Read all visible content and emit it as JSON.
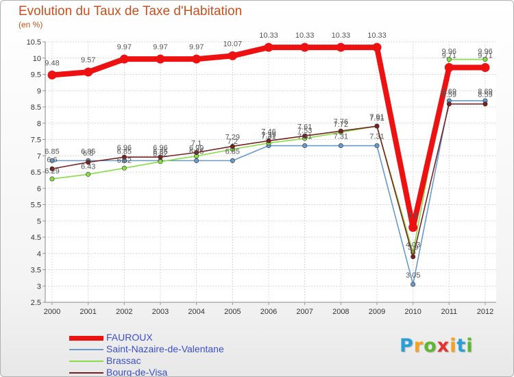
{
  "chart_data": {
    "type": "line",
    "title": "Evolution du Taux de Taxe d'Habitation",
    "unit": "(en %)",
    "categories": [
      "2000",
      "2001",
      "2002",
      "2003",
      "2004",
      "2005",
      "2006",
      "2007",
      "2008",
      "2009",
      "2010",
      "2011",
      "2012"
    ],
    "yticks": [
      "2.5",
      "3",
      "3.5",
      "4",
      "4.5",
      "5",
      "5.5",
      "6",
      "6.5",
      "7",
      "7.5",
      "8",
      "8.5",
      "9",
      "9.5",
      "10",
      "10.5"
    ],
    "ylim": [
      2.5,
      10.5
    ],
    "grid": true,
    "series": [
      {
        "name": "FAUROUX",
        "color": "#ee1111",
        "values": [
          9.48,
          9.57,
          9.97,
          9.97,
          9.97,
          10.07,
          10.33,
          10.33,
          10.33,
          10.33,
          4.8,
          9.71,
          9.71
        ],
        "labels": [
          "9.48",
          "9.57",
          "9.97",
          "9.97",
          "9.97",
          "10.07",
          "10.33",
          "10.33",
          "10.33",
          "10.33",
          "4.8",
          "9.71",
          "9.71"
        ]
      },
      {
        "name": "Saint-Nazaire-de-Valentane",
        "color": "#6699cc",
        "values": [
          6.85,
          6.85,
          6.85,
          6.85,
          6.85,
          6.85,
          7.31,
          7.31,
          7.31,
          7.31,
          3.05,
          8.69,
          8.69
        ],
        "labels": [
          "6.85",
          "6.85",
          "6.85",
          "6.85",
          "6.85",
          "6.85",
          "7.31",
          "7.31",
          "7.31",
          "7.31",
          "3.05",
          "8.69",
          "8.69"
        ]
      },
      {
        "name": "Brassac",
        "color": "#88dd44",
        "values": [
          6.29,
          6.43,
          6.62,
          6.82,
          6.99,
          7.2,
          7.39,
          7.53,
          7.72,
          7.91,
          4.03,
          9.96,
          9.96
        ],
        "labels": [
          "6.29",
          "6.43",
          "6.62",
          "6.82",
          "6.99",
          "7.2",
          "7.39",
          "7.53",
          "7.72",
          "7.91",
          "4.03",
          "9.96",
          "9.96"
        ]
      },
      {
        "name": "Bourg-de-Visa",
        "color": "#772222",
        "values": [
          6.6,
          6.8,
          6.96,
          6.96,
          7.1,
          7.29,
          7.46,
          7.61,
          7.76,
          7.91,
          3.9,
          8.59,
          8.59
        ],
        "labels": [
          "6.6",
          "6.8",
          "6.96",
          "6.96",
          "7.1",
          "7.29",
          "7.46",
          "7.61",
          "7.76",
          "7.91",
          "3.9",
          "8.59",
          "8.59"
        ]
      }
    ]
  },
  "brand": {
    "letters": [
      "P",
      "r",
      "o",
      "x",
      "i",
      "t",
      "i"
    ],
    "colors": [
      "#2a9fd6",
      "#f7a21b",
      "#5cb82e",
      "#e6322e",
      "#f7a21b",
      "#2a9fd6",
      "#5cb82e"
    ]
  }
}
